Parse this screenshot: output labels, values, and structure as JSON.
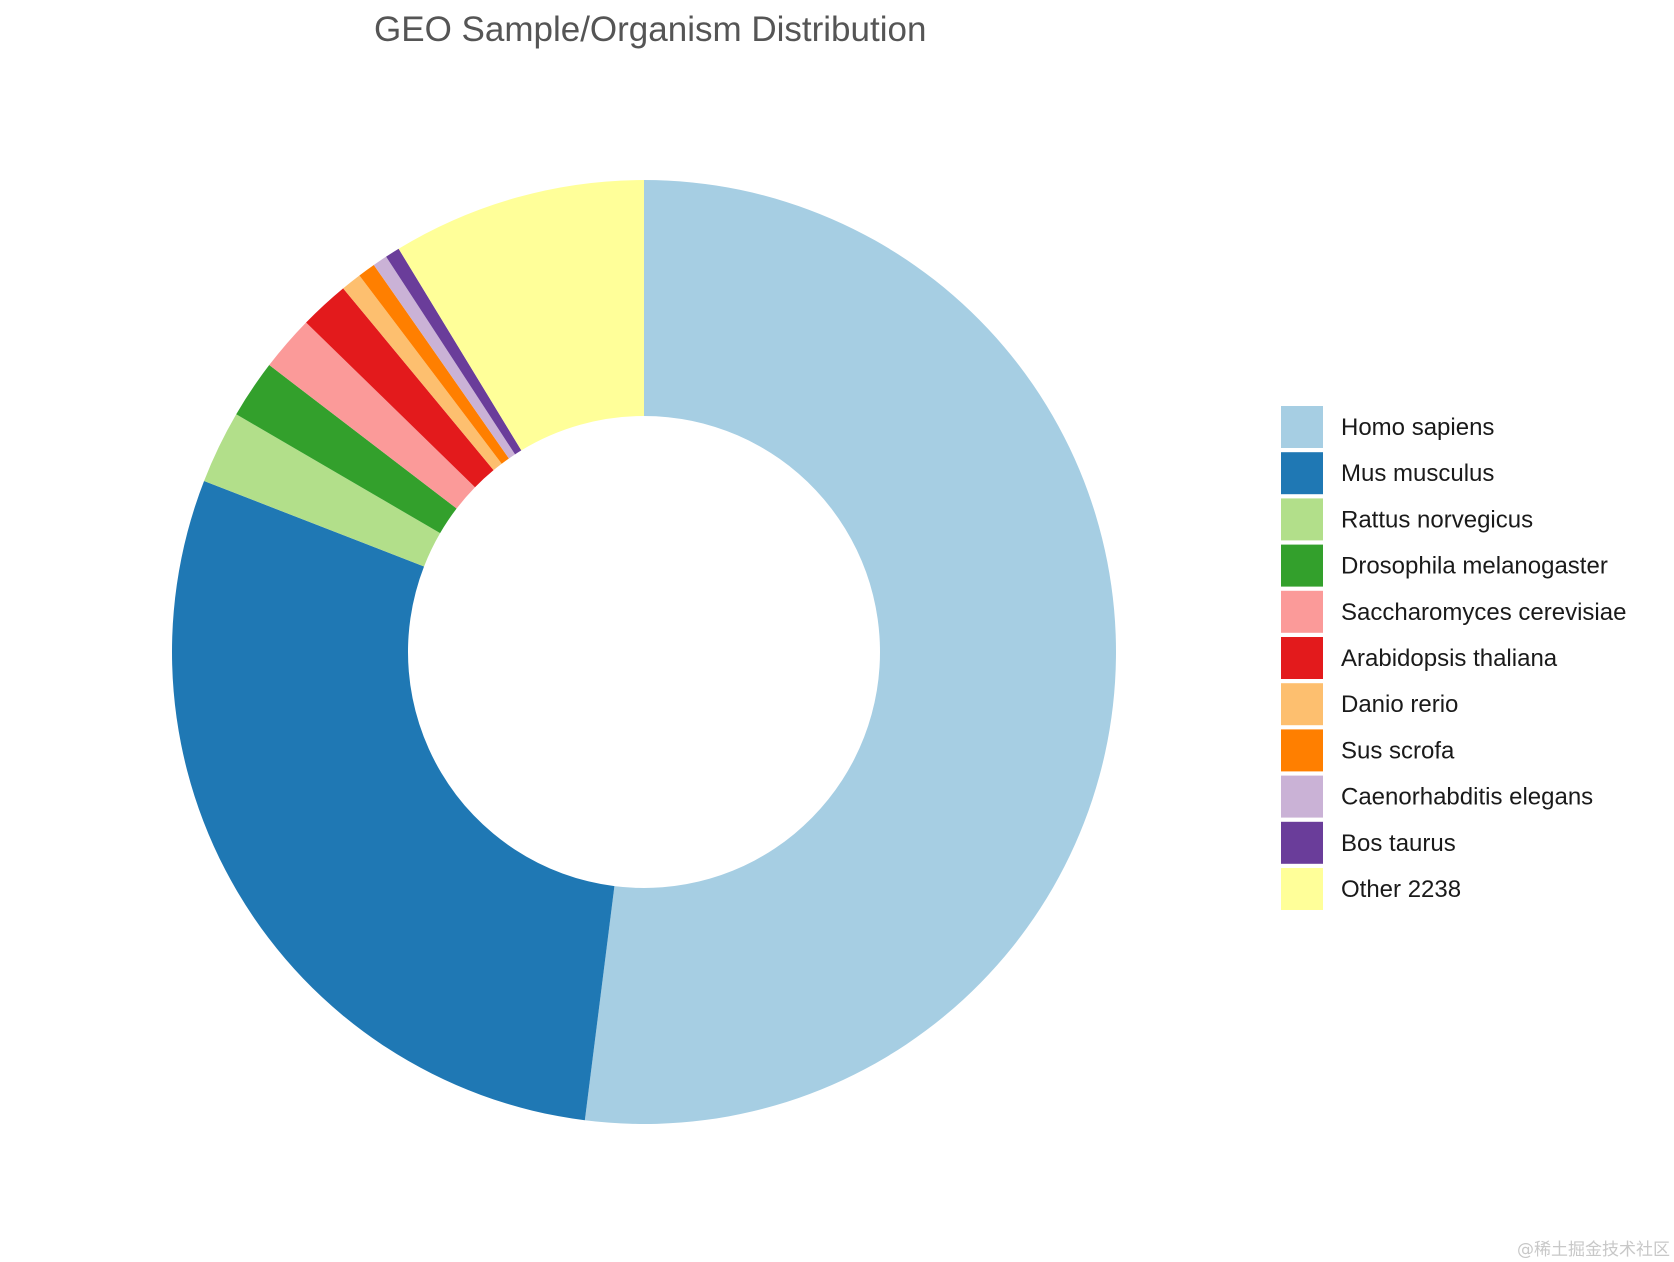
{
  "chart_data": {
    "type": "pie",
    "variant": "donut",
    "title": "GEO Sample/Organism Distribution",
    "legend_position": "right",
    "slices": [
      {
        "label": "Homo sapiens",
        "value": 52.0,
        "color": "#a6cee3"
      },
      {
        "label": "Mus musculus",
        "value": 28.9,
        "color": "#1f78b4"
      },
      {
        "label": "Rattus norvegicus",
        "value": 2.5,
        "color": "#b2df8a"
      },
      {
        "label": "Drosophila melanogaster",
        "value": 2.0,
        "color": "#33a02c"
      },
      {
        "label": "Saccharomyces cerevisiae",
        "value": 1.9,
        "color": "#fb9a99"
      },
      {
        "label": "Arabidopsis thaliana",
        "value": 1.7,
        "color": "#e31a1c"
      },
      {
        "label": "Danio rerio",
        "value": 0.7,
        "color": "#fdbf6f"
      },
      {
        "label": "Sus scrofa",
        "value": 0.6,
        "color": "#ff7f00"
      },
      {
        "label": "Caenorhabditis elegans",
        "value": 0.5,
        "color": "#cab2d6"
      },
      {
        "label": "Bos taurus",
        "value": 0.5,
        "color": "#6a3d9a"
      },
      {
        "label": "Other 2238",
        "value": 8.7,
        "color": "#ffff99"
      }
    ]
  },
  "watermark": "@稀土掘金技术社区"
}
